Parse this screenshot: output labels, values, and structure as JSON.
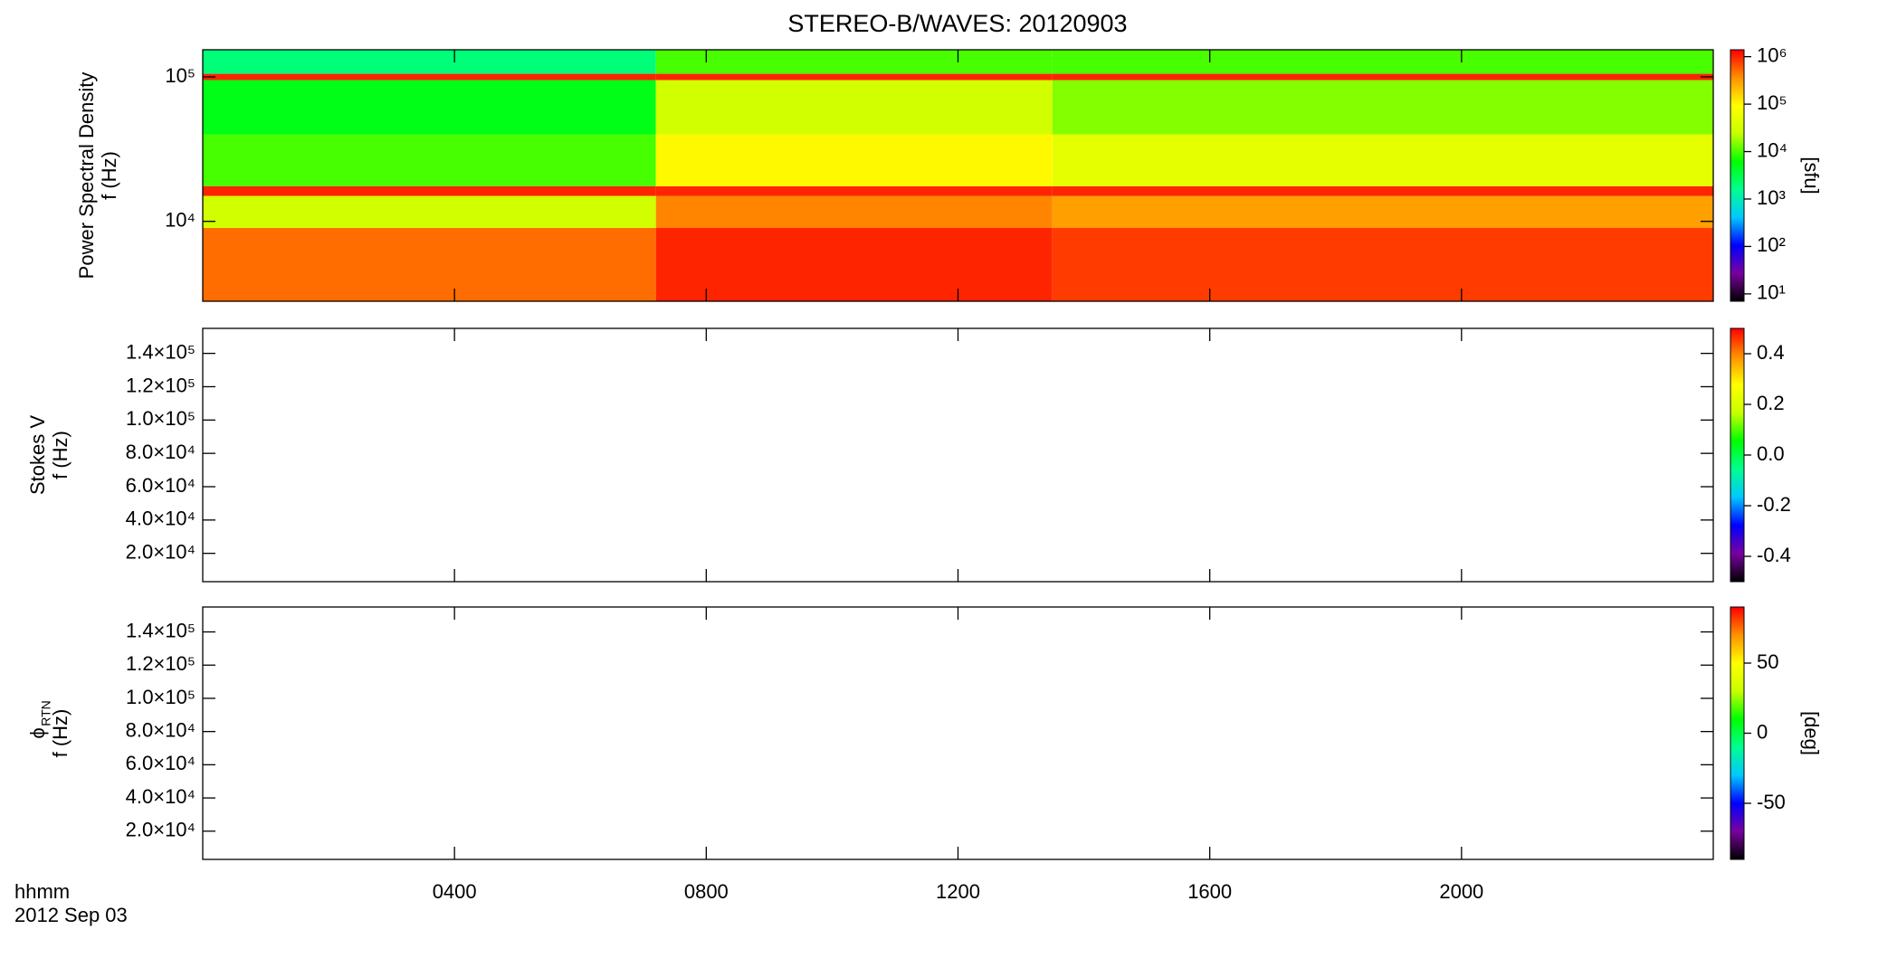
{
  "chart_data": [
    {
      "type": "heatmap",
      "title": "STEREO-B/WAVES: 20120903",
      "ylabel": [
        "Power Spectral Density",
        "f (Hz)"
      ],
      "ylim": [
        2800,
        154000
      ],
      "ylog": true,
      "yticks": [
        {
          "value": 10000,
          "label": "10⁴"
        },
        {
          "value": 100000,
          "label": "10⁵"
        }
      ],
      "xlim": [
        0,
        24
      ],
      "x_edges": [
        0,
        7.2,
        13.5,
        24
      ],
      "y_edges": [
        2800,
        9000,
        15000,
        17500,
        40000,
        95000,
        105000,
        154000
      ],
      "z": [
        [
          500000,
          30000,
          1000000,
          10000,
          5000,
          1000000,
          2000
        ],
        [
          1000000,
          400000,
          1000000,
          100000,
          30000,
          1000000,
          10000
        ],
        [
          800000,
          300000,
          1000000,
          50000,
          15000,
          1000000,
          10000
        ]
      ],
      "colormap": [
        "#000000",
        "#7a00a0",
        "#0000ff",
        "#00c8ff",
        "#00ff90",
        "#00ff00",
        "#c8ff00",
        "#ffff00",
        "#ff9000",
        "#ff0000"
      ],
      "colorbar": {
        "lim": [
          7,
          1400000
        ],
        "log": true,
        "label": "[sfu]",
        "ticks": [
          {
            "value": 10,
            "label": "10¹"
          },
          {
            "value": 100,
            "label": "10²"
          },
          {
            "value": 1000,
            "label": "10³"
          },
          {
            "value": 10000,
            "label": "10⁴"
          },
          {
            "value": 100000,
            "label": "10⁵"
          },
          {
            "value": 1000000,
            "label": "10⁶"
          }
        ]
      }
    },
    {
      "type": "heatmap",
      "ylabel": [
        "Stokes V",
        "f (Hz)"
      ],
      "ylim": [
        3000,
        155000
      ],
      "ylog": false,
      "yticks": [
        {
          "value": 20000,
          "label": "2.0×10⁴"
        },
        {
          "value": 40000,
          "label": "4.0×10⁴"
        },
        {
          "value": 60000,
          "label": "6.0×10⁴"
        },
        {
          "value": 80000,
          "label": "8.0×10⁴"
        },
        {
          "value": 100000,
          "label": "1.0×10⁵"
        },
        {
          "value": 120000,
          "label": "1.2×10⁵"
        },
        {
          "value": 140000,
          "label": "1.4×10⁵"
        }
      ],
      "xlim": [
        0,
        24
      ],
      "colormap": [
        "#000000",
        "#7a00a0",
        "#0000ff",
        "#00c8ff",
        "#00ff90",
        "#00ff00",
        "#c8ff00",
        "#ffff00",
        "#ff9000",
        "#ff0000"
      ],
      "colorbar": {
        "lim": [
          -0.5,
          0.5
        ],
        "log": false,
        "ticks": [
          {
            "value": -0.4,
            "label": "-0.4"
          },
          {
            "value": -0.2,
            "label": "-0.2"
          },
          {
            "value": 0,
            "label": "0.0"
          },
          {
            "value": 0.2,
            "label": "0.2"
          },
          {
            "value": 0.4,
            "label": "0.4"
          }
        ]
      }
    },
    {
      "type": "heatmap",
      "ylabel": [
        "ϕ",
        "f (Hz)"
      ],
      "ylabel_subscript": "RTN",
      "ylim": [
        3000,
        155000
      ],
      "ylog": false,
      "yticks": [
        {
          "value": 20000,
          "label": "2.0×10⁴"
        },
        {
          "value": 40000,
          "label": "4.0×10⁴"
        },
        {
          "value": 60000,
          "label": "6.0×10⁴"
        },
        {
          "value": 80000,
          "label": "8.0×10⁴"
        },
        {
          "value": 100000,
          "label": "1.0×10⁵"
        },
        {
          "value": 120000,
          "label": "1.2×10⁵"
        },
        {
          "value": 140000,
          "label": "1.4×10⁵"
        }
      ],
      "xlim": [
        0,
        24
      ],
      "xlabel": "hhmm",
      "date": "2012 Sep 03",
      "xticks": [
        {
          "value": 4,
          "label": "0400"
        },
        {
          "value": 8,
          "label": "0800"
        },
        {
          "value": 12,
          "label": "1200"
        },
        {
          "value": 16,
          "label": "1600"
        },
        {
          "value": 20,
          "label": "2000"
        }
      ],
      "colormap": [
        "#000000",
        "#7a00a0",
        "#0000ff",
        "#00c8ff",
        "#00ff90",
        "#00ff00",
        "#c8ff00",
        "#ffff00",
        "#ff9000",
        "#ff0000"
      ],
      "colorbar": {
        "lim": [
          -90,
          90
        ],
        "log": false,
        "label": "[deg]",
        "ticks": [
          -50,
          0,
          50
        ]
      }
    }
  ]
}
